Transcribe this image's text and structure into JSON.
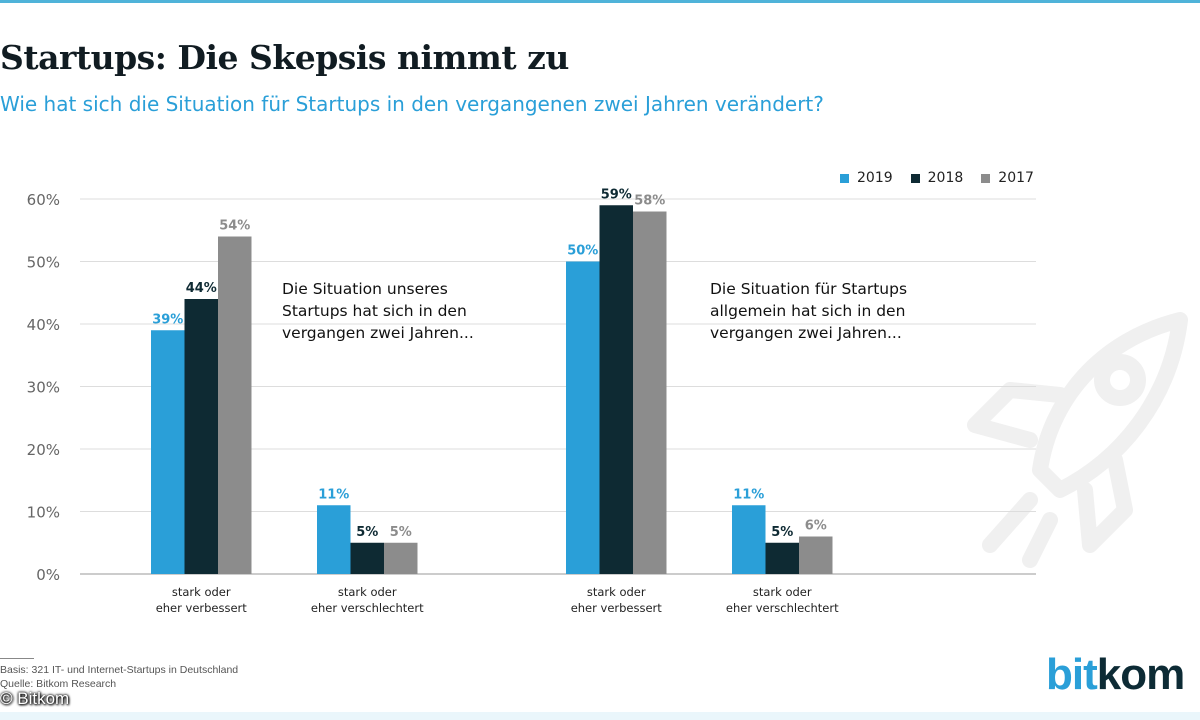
{
  "header": {
    "title": "Startups: Die Skepsis nimmt zu",
    "subtitle": "Wie hat sich die Situation für Startups in den vergangenen zwei Jahren verändert?"
  },
  "annotations": {
    "left": "Die Situation unseres\nStartups hat sich in den\nvergangen zwei Jahren...",
    "right": "Die Situation für Startups\nallgemein hat sich in den\nvergangen zwei Jahren..."
  },
  "footer": {
    "basis": "Basis: 321 IT- und Internet-Startups in Deutschland",
    "source": "Quelle: Bitkom Research",
    "copyright": "© Bitkom",
    "logo_part1": "bit",
    "logo_part2": "kom"
  },
  "colors": {
    "2019": "#2a9fd8",
    "2018": "#0e2a33",
    "2017": "#8c8c8c",
    "grid": "#dddddd",
    "axis": "#999999"
  },
  "icons": {
    "background": "rocket-icon"
  },
  "chart_data": {
    "type": "bar",
    "title": "Startups: Die Skepsis nimmt zu",
    "ylim": [
      0,
      60
    ],
    "yticks": [
      0,
      10,
      20,
      30,
      40,
      50,
      60
    ],
    "ytick_labels": [
      "0%",
      "10%",
      "20%",
      "30%",
      "40%",
      "50%",
      "60%"
    ],
    "legend": [
      "2019",
      "2018",
      "2017"
    ],
    "legend_position": "top-right",
    "categories": [
      [
        "stark oder",
        "eher verbessert"
      ],
      [
        "stark oder",
        "eher verschlechtert"
      ],
      [
        "stark oder",
        "eher verbessert"
      ],
      [
        "stark oder",
        "eher verschlechtert"
      ]
    ],
    "series": [
      {
        "name": "2019",
        "values": [
          39,
          11,
          50,
          11
        ],
        "labels": [
          "39%",
          "11%",
          "50%",
          "11%"
        ]
      },
      {
        "name": "2018",
        "values": [
          44,
          5,
          59,
          5
        ],
        "labels": [
          "44%",
          "5%",
          "59%",
          "5%"
        ]
      },
      {
        "name": "2017",
        "values": [
          54,
          5,
          58,
          6
        ],
        "labels": [
          "54%",
          "5%",
          "58%",
          "6%"
        ]
      }
    ]
  }
}
